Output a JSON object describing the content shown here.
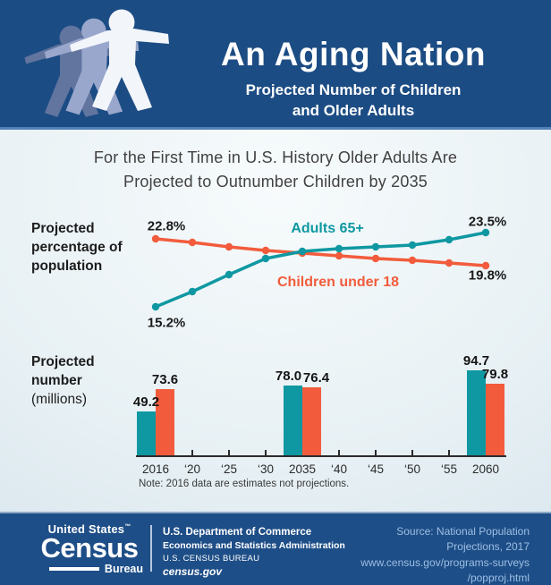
{
  "colors": {
    "header_blue": "#1c4c84",
    "teal": "#0f98a2",
    "orange": "#f25c3c",
    "footer_text_blue": "#9dbfe4"
  },
  "header": {
    "title": "An Aging Nation",
    "subtitle_line1": "Projected Number of Children",
    "subtitle_line2": "and Older Adults"
  },
  "statement": {
    "line1": "For the First Time in U.S. History Older Adults Are",
    "line2": "Projected to Outnumber Children by 2035"
  },
  "line_chart": {
    "section_label": "Projected percentage of population",
    "label_children_start": "22.8%",
    "label_adults_start": "15.2%",
    "label_adults_end": "23.5%",
    "label_children_end": "19.8%",
    "series_label_adults": "Adults 65+",
    "series_label_children": "Children under 18"
  },
  "bar_chart": {
    "section_label_bold": "Projected number",
    "section_label_normal": "(millions)",
    "note": "Note: 2016 data are estimates not projections."
  },
  "chart_data": [
    {
      "type": "line",
      "title": "Projected percentage of population",
      "x": [
        "2016",
        "‘20",
        "‘25",
        "‘30",
        "2035",
        "‘40",
        "‘45",
        "‘50",
        "‘55",
        "2060"
      ],
      "series": [
        {
          "name": "Adults 65+",
          "color": "#0f98a2",
          "values": [
            15.2,
            16.9,
            18.8,
            20.6,
            21.4,
            21.7,
            21.9,
            22.1,
            22.7,
            23.5
          ]
        },
        {
          "name": "Children under 18",
          "color": "#f25c3c",
          "values": [
            22.8,
            22.4,
            21.9,
            21.5,
            21.2,
            20.9,
            20.6,
            20.4,
            20.1,
            19.8
          ]
        }
      ],
      "unit": "%",
      "ylim": [
        15,
        24
      ],
      "grid": false,
      "annotations": [
        "22.8%",
        "15.2%",
        "23.5%",
        "19.8%",
        "Adults 65+",
        "Children under 18"
      ]
    },
    {
      "type": "bar",
      "title": "Projected number (millions)",
      "categories": [
        "2016",
        "‘20",
        "‘25",
        "‘30",
        "2035",
        "‘40",
        "‘45",
        "‘50",
        "‘55",
        "2060"
      ],
      "bar_categories": [
        "2016",
        "2035",
        "2060"
      ],
      "series": [
        {
          "name": "Adults 65+",
          "color": "#0f98a2",
          "values": [
            49.2,
            78.0,
            94.7
          ]
        },
        {
          "name": "Children under 18",
          "color": "#f25c3c",
          "values": [
            73.6,
            76.4,
            79.8
          ]
        }
      ],
      "unit": "millions",
      "note": "Note: 2016 data are estimates not projections."
    }
  ],
  "footer": {
    "logo": {
      "top": "United States",
      "tm": "™",
      "main": "Census",
      "bottom": "Bureau"
    },
    "dept_lines": [
      "U.S. Department of Commerce",
      "Economics and Statistics Administration",
      "U.S. CENSUS BUREAU",
      "census.gov"
    ],
    "source_lines": [
      "Source: National Population",
      "Projections, 2017",
      "www.census.gov/programs-surveys",
      "/popproj.html"
    ]
  }
}
